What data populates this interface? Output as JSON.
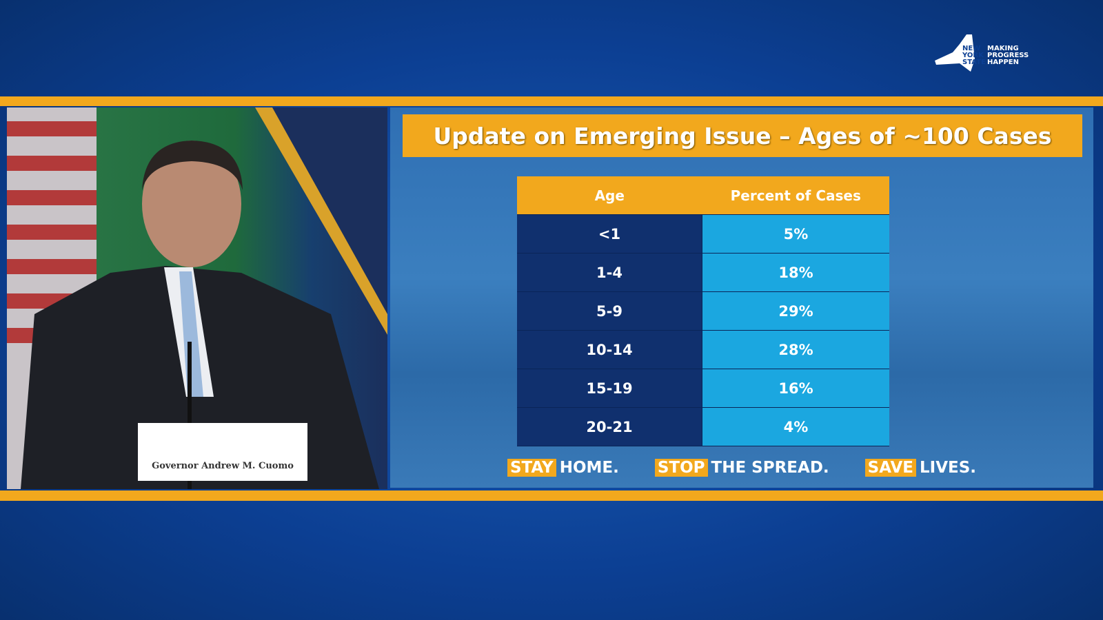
{
  "logo": {
    "state": "NEW YORK STATE",
    "motto": "MAKING PROGRESS HAPPEN"
  },
  "slide": {
    "title": "Update on Emerging Issue – Ages of ~100 Cases",
    "table": {
      "header": [
        "Age",
        "Percent of Cases"
      ],
      "rows": [
        [
          "<1",
          "5%"
        ],
        [
          "1-4",
          "18%"
        ],
        [
          "5-9",
          "29%"
        ],
        [
          "10-14",
          "28%"
        ],
        [
          "15-19",
          "16%"
        ],
        [
          "20-21",
          "4%"
        ]
      ]
    },
    "slogans": [
      {
        "highlight": "STAY",
        "rest": "HOME."
      },
      {
        "highlight": "STOP",
        "rest": "THE SPREAD."
      },
      {
        "highlight": "SAVE",
        "rest": "LIVES."
      }
    ]
  },
  "nameplate": "Governor Andrew M. Cuomo"
}
